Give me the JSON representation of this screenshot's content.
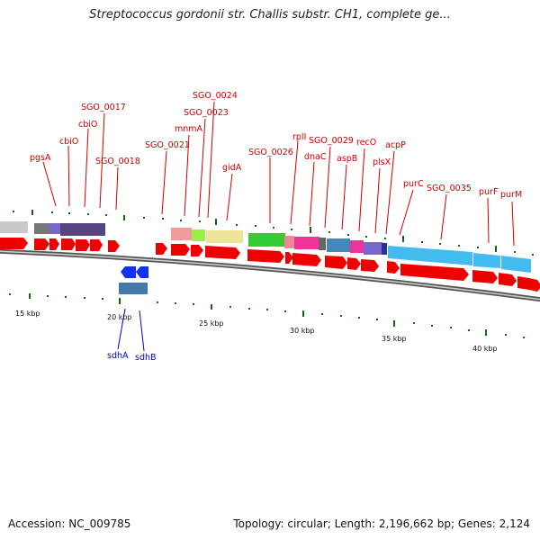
{
  "header": {
    "title": "Streptococcus gordonii str. Challis substr. CH1, complete ge..."
  },
  "footer": {
    "accession": "Accession: NC_009785",
    "summary": "Topology: circular; Length: 2,196,662 bp; Genes: 2,124"
  },
  "colors": {
    "gene_label_forward": "#cc0000",
    "gene_label_reverse": "#0000cc",
    "cds_arrow": "#ee0000",
    "backbone": "#888888"
  },
  "scale_labels": [
    "15 kbp",
    "20 kbp",
    "25 kbp",
    "30 kbp",
    "35 kbp",
    "40 kbp"
  ],
  "gene_labels": [
    {
      "text": "pgsA",
      "strand": "forward"
    },
    {
      "text": "cbiO",
      "strand": "forward"
    },
    {
      "text": "cbiO",
      "strand": "forward"
    },
    {
      "text": "SGO_0017",
      "strand": "forward"
    },
    {
      "text": "SGO_0018",
      "strand": "forward"
    },
    {
      "text": "SGO_0021",
      "strand": "forward"
    },
    {
      "text": "mnmA",
      "strand": "forward"
    },
    {
      "text": "SGO_0023",
      "strand": "forward"
    },
    {
      "text": "SGO_0024",
      "strand": "forward"
    },
    {
      "text": "gidA",
      "strand": "forward"
    },
    {
      "text": "SGO_0026",
      "strand": "forward"
    },
    {
      "text": "rplI",
      "strand": "forward"
    },
    {
      "text": "dnaC",
      "strand": "forward"
    },
    {
      "text": "SGO_0029",
      "strand": "forward"
    },
    {
      "text": "aspB",
      "strand": "forward"
    },
    {
      "text": "recO",
      "strand": "forward"
    },
    {
      "text": "plsX",
      "strand": "forward"
    },
    {
      "text": "acpP",
      "strand": "forward"
    },
    {
      "text": "purC",
      "strand": "forward"
    },
    {
      "text": "SGO_0035",
      "strand": "forward"
    },
    {
      "text": "purF",
      "strand": "forward"
    },
    {
      "text": "purM",
      "strand": "forward"
    },
    {
      "text": "sdhA",
      "strand": "reverse"
    },
    {
      "text": "sdhB",
      "strand": "reverse"
    }
  ]
}
